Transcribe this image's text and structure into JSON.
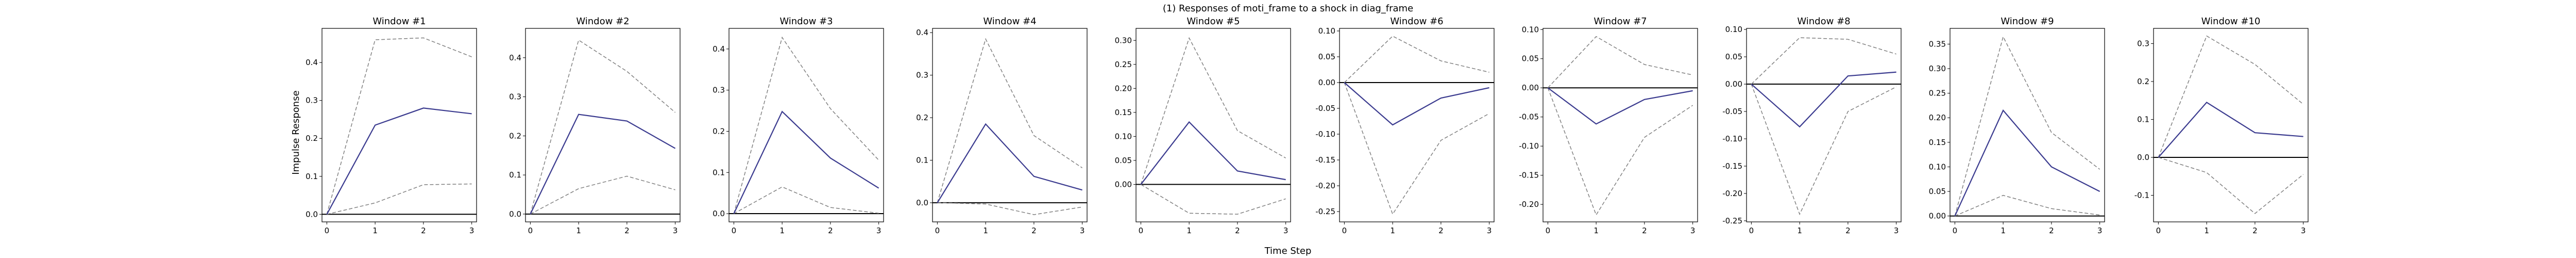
{
  "figure": {
    "title": "(1) Responses of moti_frame to a shock in diag_frame",
    "xlabel": "Time Step",
    "ylabel": "Impulse Response"
  },
  "colors": {
    "irf_line": "#3b3b8f",
    "ci_band": "#808080",
    "zero_line": "#000000"
  },
  "chart_data": [
    {
      "type": "line",
      "title": "Window #1",
      "x": [
        0,
        1,
        2,
        3
      ],
      "series": [
        {
          "values": [
            0.0,
            0.235,
            0.28,
            0.265
          ]
        }
      ],
      "ci_lower": [
        0.0,
        0.03,
        0.078,
        0.08
      ],
      "ci_upper": [
        0.0,
        0.46,
        0.465,
        0.415
      ],
      "ylim": [
        -0.02,
        0.49
      ],
      "yticks": [
        0.0,
        0.1,
        0.2,
        0.3,
        0.4
      ],
      "tick_labels": [
        "0.0",
        "0.1",
        "0.2",
        "0.3",
        "0.4"
      ]
    },
    {
      "type": "line",
      "title": "Window #2",
      "x": [
        0,
        1,
        2,
        3
      ],
      "series": [
        {
          "values": [
            0.0,
            0.255,
            0.238,
            0.168
          ]
        }
      ],
      "ci_lower": [
        0.0,
        0.065,
        0.097,
        0.062
      ],
      "ci_upper": [
        0.0,
        0.445,
        0.365,
        0.26
      ],
      "ylim": [
        -0.02,
        0.475
      ],
      "yticks": [
        0.0,
        0.1,
        0.2,
        0.3,
        0.4
      ],
      "tick_labels": [
        "0.0",
        "0.1",
        "0.2",
        "0.3",
        "0.4"
      ]
    },
    {
      "type": "line",
      "title": "Window #3",
      "x": [
        0,
        1,
        2,
        3
      ],
      "series": [
        {
          "values": [
            0.0,
            0.248,
            0.135,
            0.062
          ]
        }
      ],
      "ci_lower": [
        0.0,
        0.065,
        0.015,
        0.001
      ],
      "ci_upper": [
        0.0,
        0.428,
        0.255,
        0.13
      ],
      "ylim": [
        -0.02,
        0.45
      ],
      "yticks": [
        0.0,
        0.1,
        0.2,
        0.3,
        0.4
      ],
      "tick_labels": [
        "0.0",
        "0.1",
        "0.2",
        "0.3",
        "0.4"
      ]
    },
    {
      "type": "line",
      "title": "Window #4",
      "x": [
        0,
        1,
        2,
        3
      ],
      "series": [
        {
          "values": [
            0.0,
            0.185,
            0.062,
            0.03
          ]
        }
      ],
      "ci_lower": [
        0.0,
        -0.003,
        -0.028,
        -0.01
      ],
      "ci_upper": [
        0.0,
        0.385,
        0.158,
        0.082
      ],
      "ylim": [
        -0.045,
        0.41
      ],
      "yticks": [
        0.0,
        0.1,
        0.2,
        0.3,
        0.4
      ],
      "tick_labels": [
        "0.0",
        "0.1",
        "0.2",
        "0.3",
        "0.4"
      ]
    },
    {
      "type": "line",
      "title": "Window #5",
      "x": [
        0,
        1,
        2,
        3
      ],
      "series": [
        {
          "values": [
            0.0,
            0.13,
            0.028,
            0.01
          ]
        }
      ],
      "ci_lower": [
        0.0,
        -0.06,
        -0.062,
        -0.03
      ],
      "ci_upper": [
        0.0,
        0.305,
        0.112,
        0.055
      ],
      "ylim": [
        -0.078,
        0.325
      ],
      "yticks": [
        0.0,
        0.05,
        0.1,
        0.15,
        0.2,
        0.25,
        0.3
      ],
      "tick_labels": [
        "0.00",
        "0.05",
        "0.10",
        "0.15",
        "0.20",
        "0.25",
        "0.30"
      ]
    },
    {
      "type": "line",
      "title": "Window #6",
      "x": [
        0,
        1,
        2,
        3
      ],
      "series": [
        {
          "values": [
            0.0,
            -0.082,
            -0.03,
            -0.01
          ]
        }
      ],
      "ci_lower": [
        0.0,
        -0.255,
        -0.112,
        -0.06
      ],
      "ci_upper": [
        0.0,
        0.09,
        0.042,
        0.02
      ],
      "ylim": [
        -0.27,
        0.105
      ],
      "yticks": [
        -0.25,
        -0.2,
        -0.15,
        -0.1,
        -0.05,
        0.0,
        0.05,
        0.1
      ],
      "tick_labels": [
        "-0.25",
        "-0.20",
        "-0.15",
        "-0.10",
        "-0.05",
        "0.00",
        "0.05",
        "0.10"
      ]
    },
    {
      "type": "line",
      "title": "Window #7",
      "x": [
        0,
        1,
        2,
        3
      ],
      "series": [
        {
          "values": [
            0.0,
            -0.062,
            -0.02,
            -0.005
          ]
        }
      ],
      "ci_lower": [
        0.0,
        -0.218,
        -0.085,
        -0.03
      ],
      "ci_upper": [
        0.0,
        0.088,
        0.04,
        0.022
      ],
      "ylim": [
        -0.23,
        0.102
      ],
      "yticks": [
        -0.2,
        -0.15,
        -0.1,
        -0.05,
        0.0,
        0.05,
        0.1
      ],
      "tick_labels": [
        "-0.20",
        "-0.15",
        "-0.10",
        "-0.05",
        "0.00",
        "0.05",
        "0.10"
      ]
    },
    {
      "type": "line",
      "title": "Window #8",
      "x": [
        0,
        1,
        2,
        3
      ],
      "series": [
        {
          "values": [
            0.0,
            -0.078,
            0.015,
            0.022
          ]
        }
      ],
      "ci_lower": [
        0.0,
        -0.238,
        -0.05,
        -0.005
      ],
      "ci_upper": [
        0.0,
        0.085,
        0.082,
        0.055
      ],
      "ylim": [
        -0.252,
        0.102
      ],
      "yticks": [
        -0.25,
        -0.2,
        -0.15,
        -0.1,
        -0.05,
        0.0,
        0.05,
        0.1
      ],
      "tick_labels": [
        "-0.25",
        "-0.20",
        "-0.15",
        "-0.10",
        "-0.05",
        "0.00",
        "0.05",
        "0.10"
      ]
    },
    {
      "type": "line",
      "title": "Window #9",
      "x": [
        0,
        1,
        2,
        3
      ],
      "series": [
        {
          "values": [
            0.0,
            0.215,
            0.1,
            0.05
          ]
        }
      ],
      "ci_lower": [
        0.0,
        0.042,
        0.015,
        0.002
      ],
      "ci_upper": [
        0.0,
        0.365,
        0.17,
        0.095
      ],
      "ylim": [
        -0.012,
        0.382
      ],
      "yticks": [
        0.0,
        0.05,
        0.1,
        0.15,
        0.2,
        0.25,
        0.3,
        0.35
      ],
      "tick_labels": [
        "0.00",
        "0.05",
        "0.10",
        "0.15",
        "0.20",
        "0.25",
        "0.30",
        "0.35"
      ]
    },
    {
      "type": "line",
      "title": "Window #10",
      "x": [
        0,
        1,
        2,
        3
      ],
      "series": [
        {
          "values": [
            0.0,
            0.145,
            0.065,
            0.055
          ]
        }
      ],
      "ci_lower": [
        0.0,
        -0.04,
        -0.148,
        -0.045
      ],
      "ci_upper": [
        0.0,
        0.32,
        0.245,
        0.14
      ],
      "ylim": [
        -0.17,
        0.34
      ],
      "yticks": [
        -0.1,
        0.0,
        0.1,
        0.2,
        0.3
      ],
      "tick_labels": [
        "-0.1",
        "0.0",
        "0.1",
        "0.2",
        "0.3"
      ]
    }
  ]
}
